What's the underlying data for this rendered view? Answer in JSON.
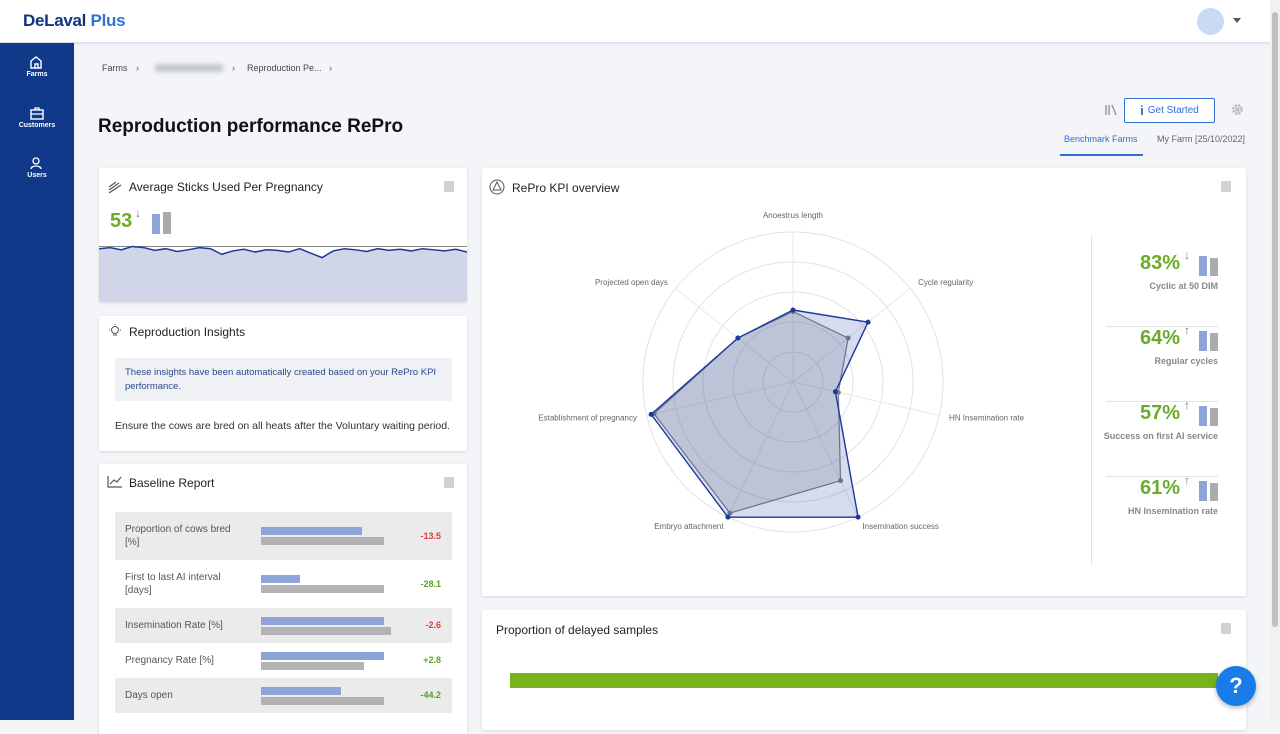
{
  "header": {
    "logo": "DeLaval",
    "logo_accent": "Plus"
  },
  "sidebar": [
    {
      "label": "Farms"
    },
    {
      "label": "Customers"
    },
    {
      "label": "Users"
    }
  ],
  "breadcrumb": [
    "Farms",
    "Reproduction Pe..."
  ],
  "page_title": "Reproduction performance RePro",
  "actions": {
    "get_started": "Get Started"
  },
  "tabs": [
    "Benchmark Farms",
    "My Farm [25/10/2022]"
  ],
  "sticks_card": {
    "title": "Average Sticks Used Per Pregnancy",
    "value": "53",
    "arrow": "↓",
    "benchmark": 0.92,
    "trend": [
      0.88,
      0.9,
      0.86,
      0.92,
      0.9,
      0.85,
      0.88,
      0.83,
      0.86,
      0.9,
      0.88,
      0.78,
      0.84,
      0.87,
      0.82,
      0.86,
      0.85,
      0.82,
      0.88,
      0.8,
      0.72,
      0.84,
      0.88,
      0.86,
      0.83,
      0.88,
      0.85,
      0.87,
      0.84,
      0.88,
      0.86,
      0.84,
      0.87,
      0.82
    ]
  },
  "insights": {
    "title": "Reproduction Insights",
    "note": "These insights have been automatically created based on your RePro KPI performance.",
    "text": "Ensure the cows are bred on all heats after the Voluntary waiting period."
  },
  "baseline": {
    "title": "Baseline Report",
    "rows": [
      {
        "label": "Proportion of cows bred [%]",
        "farm": 101,
        "benchmark": 123,
        "diff": "-13.5",
        "color": "#e53935"
      },
      {
        "label": "First to last AI interval [days]",
        "farm": 39,
        "benchmark": 123,
        "diff": "-28.1",
        "color": "#5d9e22"
      },
      {
        "label": "Insemination Rate [%]",
        "farm": 123,
        "benchmark": 130,
        "diff": "-2.6",
        "color": "#e53935"
      },
      {
        "label": "Pregnancy Rate [%]",
        "farm": 123,
        "benchmark": 103,
        "diff": "+2.8",
        "color": "#5d9e22"
      },
      {
        "label": "Days open",
        "farm": 80,
        "benchmark": 123,
        "diff": "-44.2",
        "color": "#5d9e22"
      }
    ]
  },
  "kpi": {
    "title": "RePro KPI overview",
    "radar": {
      "axes": [
        "Anoestrus length",
        "Cycle regularity",
        "HN Insemination rate",
        "Insemination success",
        "Embryo attachment",
        "Establishment of pregnancy",
        "Projected open days"
      ],
      "series": [
        {
          "color": "#1a3a9c",
          "values": [
            0.48,
            0.64,
            0.29,
            1.0,
            1.0,
            0.97,
            0.47
          ]
        },
        {
          "color": "#7a7f88",
          "values": [
            0.47,
            0.47,
            0.31,
            0.73,
            0.97,
            0.95,
            0.47
          ]
        }
      ]
    },
    "items": [
      {
        "value": "83%",
        "arrow": "↓",
        "label": "Cyclic at 50 DIM"
      },
      {
        "value": "64%",
        "arrow": "↑",
        "label": "Regular cycles"
      },
      {
        "value": "57%",
        "arrow": "↑",
        "label": "Success on first AI service"
      },
      {
        "value": "61%",
        "arrow": "↑",
        "label": "HN Insemination rate"
      }
    ]
  },
  "delayed": {
    "title": "Proportion of delayed samples"
  },
  "help": "?"
}
